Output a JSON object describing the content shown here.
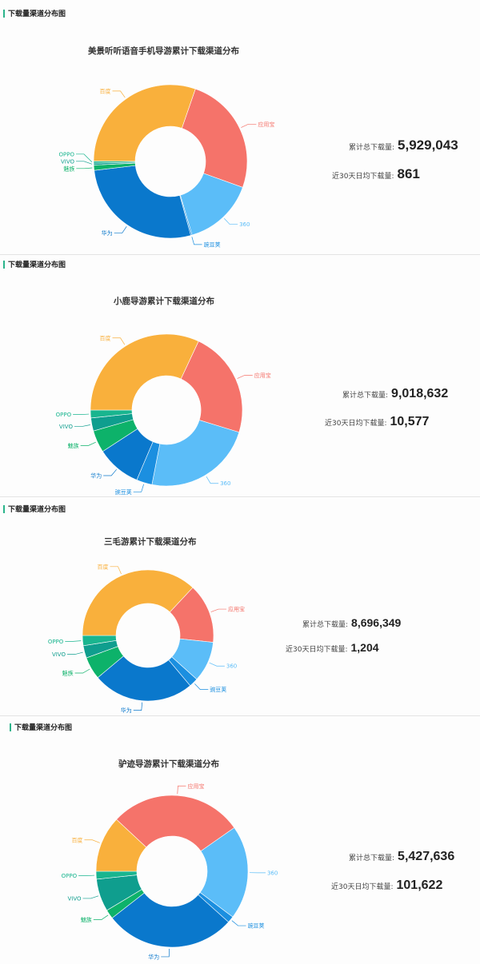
{
  "section_title": "下载量渠道分布图",
  "stats_labels": {
    "total": "累计总下载量:",
    "avg30": "近30天日均下载量:"
  },
  "colors": {
    "百度": "#F9B03C",
    "应用宝": "#F5736A",
    "360": "#5BBDF8",
    "豌豆荚": "#1B8FE0",
    "华为": "#0A78CC",
    "魅族": "#0DB26A",
    "VIVO": "#0F9E8E",
    "OPPO": "#19B58F",
    "accent": "#2BB48B"
  },
  "panels": [
    {
      "chart_title": "美景听听语音手机导游累计下载渠道分布",
      "total": "5,929,043",
      "avg30": "861"
    },
    {
      "chart_title": "小鹿导游累计下载渠道分布",
      "total": "9,018,632",
      "avg30": "10,577"
    },
    {
      "chart_title": "三毛游累计下载渠道分布",
      "total": "8,696,349",
      "avg30": "1,204"
    },
    {
      "chart_title": "驴迹导游累计下载渠道分布",
      "total": "5,427,636",
      "avg30": "101,622"
    }
  ],
  "chart_data": [
    {
      "type": "pie",
      "title": "美景听听语音手机导游累计下载渠道分布",
      "donut": true,
      "start_angle_deg": 19,
      "categories": [
        "应用宝",
        "360",
        "豌豆荚",
        "华为",
        "魅族",
        "VIVO",
        "OPPO",
        "百度"
      ],
      "values": [
        91,
        54,
        1,
        99,
        4,
        1.5,
        1.5,
        109
      ],
      "unit": "degrees (approx share of 360)",
      "legend": "labels with leader lines"
    },
    {
      "type": "pie",
      "title": "小鹿导游累计下载渠道分布",
      "donut": true,
      "start_angle_deg": 25,
      "categories": [
        "应用宝",
        "360",
        "豌豆荚",
        "华为",
        "魅族",
        "VIVO",
        "OPPO",
        "百度"
      ],
      "values": [
        82,
        84,
        12,
        34,
        17,
        10,
        6,
        115
      ],
      "unit": "degrees (approx share of 360)",
      "legend": "labels with leader lines"
    },
    {
      "type": "pie",
      "title": "三毛游累计下载渠道分布",
      "donut": true,
      "start_angle_deg": 43,
      "categories": [
        "应用宝",
        "360",
        "豌豆荚",
        "华为",
        "魅族",
        "VIVO",
        "OPPO",
        "百度"
      ],
      "values": [
        53,
        36,
        8,
        90,
        20,
        11,
        9,
        133
      ],
      "unit": "degrees (approx share of 360)",
      "legend": "labels with leader lines"
    },
    {
      "type": "pie",
      "title": "驴迹导游累计下载渠道分布",
      "donut": true,
      "start_angle_deg": -47,
      "categories": [
        "应用宝",
        "360",
        "豌豆荚",
        "华为",
        "魅族",
        "VIVO",
        "OPPO",
        "百度"
      ],
      "values": [
        102,
        72,
        5,
        100,
        7,
        25,
        6,
        43
      ],
      "unit": "degrees (approx share of 360)",
      "legend": "labels with leader lines"
    }
  ]
}
